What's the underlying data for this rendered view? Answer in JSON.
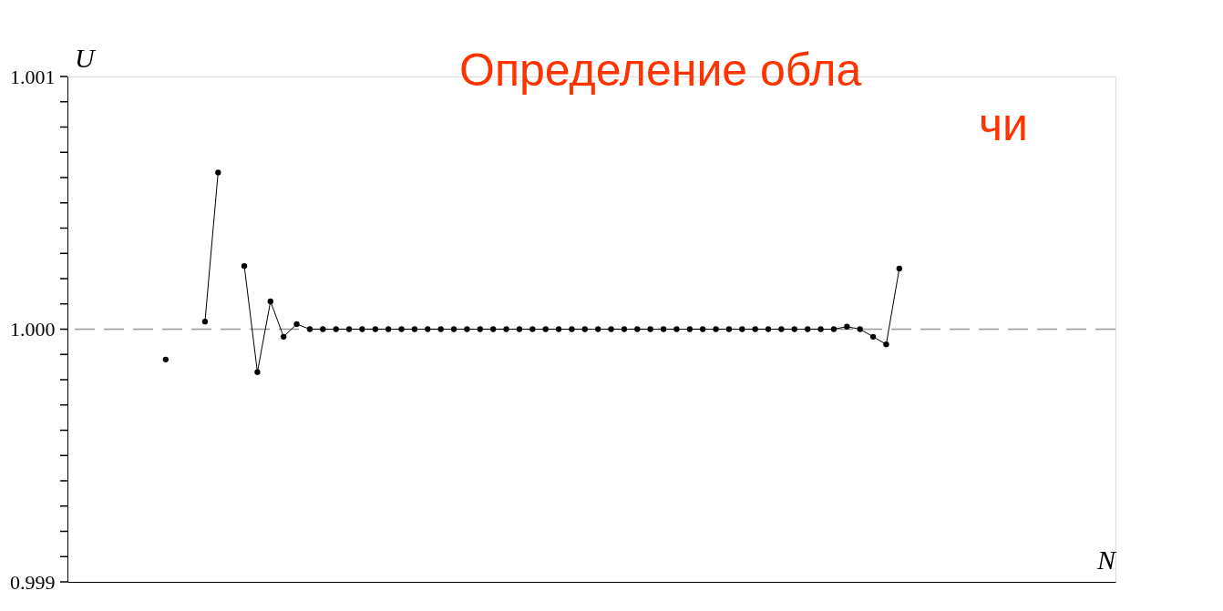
{
  "chart_data": {
    "type": "line",
    "title": "Определение обла",
    "subtitle": "чи",
    "xlabel": "N",
    "ylabel": "U",
    "categories": [
      null,
      null,
      null,
      null,
      null,
      null,
      null,
      null,
      null,
      null,
      null,
      null,
      null,
      null,
      null,
      null,
      null,
      null,
      null,
      null,
      null,
      null,
      null,
      null,
      null,
      null,
      null,
      null,
      null,
      null,
      null,
      null,
      null,
      null,
      null,
      null,
      null,
      null,
      null,
      null,
      null,
      null,
      null,
      null,
      null,
      null,
      null,
      null,
      null,
      null,
      null,
      null,
      null,
      null,
      null,
      null,
      null,
      null,
      null,
      null,
      null,
      null,
      null,
      null,
      null,
      null,
      null,
      null,
      null,
      null,
      null,
      null,
      null,
      null,
      null,
      null,
      null,
      null,
      null,
      null
    ],
    "series": [
      {
        "type": "scatter",
        "color": "#000000",
        "values": [
          null,
          null,
          null,
          null,
          null,
          null,
          null,
          0.99988,
          null,
          null,
          null,
          null,
          null,
          null,
          null,
          null,
          null,
          null,
          null,
          null,
          null,
          null,
          null,
          null,
          null,
          null,
          null,
          null,
          null,
          null,
          null,
          null,
          null,
          null,
          null,
          null,
          null,
          null,
          null,
          null,
          null,
          null,
          null,
          null,
          null,
          null,
          null,
          null,
          null,
          null,
          null,
          null,
          null,
          null,
          null,
          null,
          null,
          null,
          null,
          null,
          null,
          null,
          null,
          null,
          null,
          null,
          null,
          null,
          null,
          null,
          null,
          null,
          null,
          null,
          null,
          null,
          null,
          null,
          null,
          null
        ]
      },
      {
        "color": "#000000",
        "values": [
          null,
          null,
          null,
          null,
          null,
          null,
          null,
          null,
          null,
          null,
          1.00003,
          1.00062,
          null,
          null,
          null,
          null,
          null,
          null,
          null,
          null,
          null,
          null,
          null,
          null,
          null,
          null,
          null,
          null,
          null,
          null,
          null,
          null,
          null,
          null,
          null,
          null,
          null,
          null,
          null,
          null,
          null,
          null,
          null,
          null,
          null,
          null,
          null,
          null,
          null,
          null,
          null,
          null,
          null,
          null,
          null,
          null,
          null,
          null,
          null,
          null,
          null,
          null,
          null,
          null,
          null,
          null,
          null,
          null,
          null,
          null,
          null,
          null,
          null,
          null,
          null,
          null,
          null,
          null,
          null,
          null
        ]
      },
      {
        "color": "#000000",
        "values": [
          null,
          null,
          null,
          null,
          null,
          null,
          null,
          null,
          null,
          null,
          null,
          null,
          null,
          1.00025,
          0.99983,
          1.00011,
          0.99997,
          1.00002,
          1.0,
          1.0,
          1.0,
          1.0,
          1.0,
          1.0,
          1.0,
          1.0,
          1.0,
          1.0,
          1.0,
          1.0,
          1.0,
          1.0,
          1.0,
          1.0,
          1.0,
          1.0,
          1.0,
          1.0,
          1.0,
          1.0,
          1.0,
          1.0,
          1.0,
          1.0,
          1.0,
          1.0,
          1.0,
          1.0,
          1.0,
          1.0,
          1.0,
          1.0,
          1.0,
          1.0,
          1.0,
          1.0,
          1.0,
          1.0,
          1.0,
          1.00001,
          1.0,
          0.99997,
          0.99994,
          1.00024,
          null,
          null,
          null,
          null,
          null,
          null,
          null,
          null,
          null,
          null,
          null,
          null,
          null,
          null,
          null,
          null
        ]
      }
    ],
    "marker": "circle",
    "ylim": [
      0.999,
      1.001
    ],
    "yticks": [
      {
        "value": 0.999,
        "label": "0.999"
      },
      {
        "value": 0.9991,
        "label": null
      },
      {
        "value": 0.9992,
        "label": null
      },
      {
        "value": 0.9993,
        "label": null
      },
      {
        "value": 0.9994,
        "label": null
      },
      {
        "value": 0.9995,
        "label": null
      },
      {
        "value": 0.9996,
        "label": null
      },
      {
        "value": 0.9997,
        "label": null
      },
      {
        "value": 0.9998,
        "label": null
      },
      {
        "value": 0.9999,
        "label": null
      },
      {
        "value": 1.0,
        "label": "1.000"
      },
      {
        "value": 1.0001,
        "label": null
      },
      {
        "value": 1.0002,
        "label": null
      },
      {
        "value": 1.0003,
        "label": null
      },
      {
        "value": 1.0004,
        "label": null
      },
      {
        "value": 1.0005,
        "label": null
      },
      {
        "value": 1.0006,
        "label": null
      },
      {
        "value": 1.0007,
        "label": null
      },
      {
        "value": 1.0008,
        "label": null
      },
      {
        "value": 1.0009,
        "label": null
      },
      {
        "value": 1.001,
        "label": "1.001"
      }
    ],
    "tick_labels": "y",
    "grid": false,
    "ref_lines": [
      {
        "axis": "y",
        "value": 1.0,
        "color": "#999999",
        "line_style": "dashed"
      }
    ]
  }
}
